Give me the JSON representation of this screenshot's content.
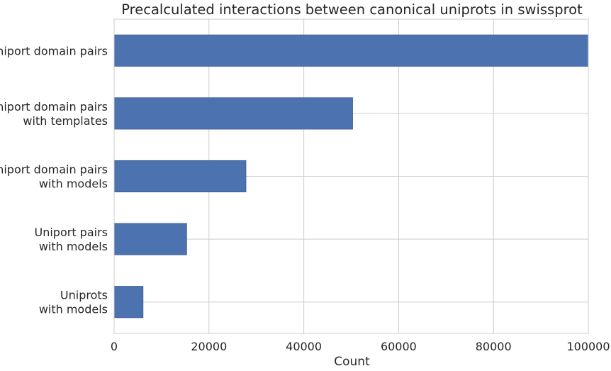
{
  "chart_data": {
    "type": "bar",
    "orientation": "horizontal",
    "title": "Precalculated interactions between canonical uniprots in swissprot",
    "xlabel": "Count",
    "ylabel": "",
    "xlim": [
      0,
      100000
    ],
    "xticks": [
      0,
      20000,
      40000,
      60000,
      80000,
      100000
    ],
    "grid": true,
    "bar_color": "#4c72b0",
    "categories": [
      [
        "Uniport domain pairs"
      ],
      [
        "Uniport domain pairs",
        "with templates"
      ],
      [
        "Uniport domain pairs",
        "with models"
      ],
      [
        "Uniport pairs",
        "with models"
      ],
      [
        "Uniprots",
        "with models"
      ]
    ],
    "values": [
      100000,
      50300,
      27800,
      15300,
      6100
    ]
  }
}
